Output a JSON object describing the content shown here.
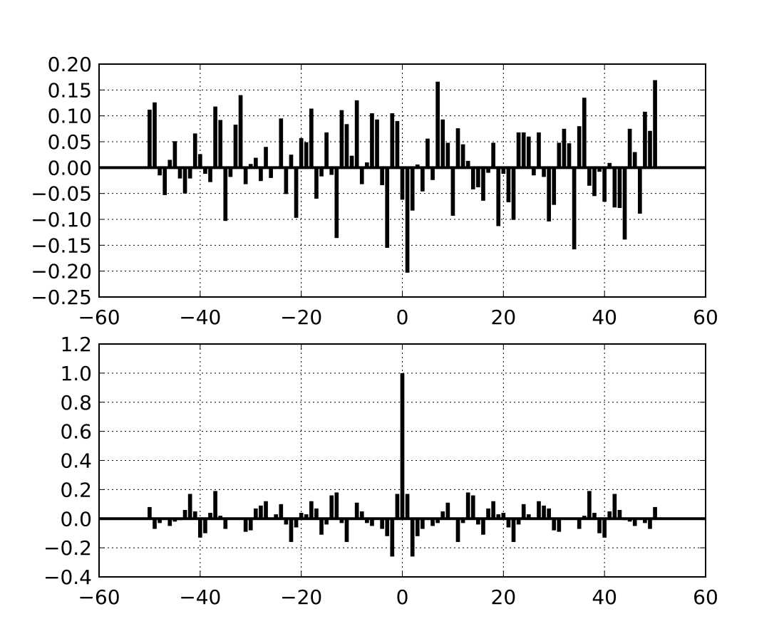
{
  "chart_data": [
    {
      "type": "bar",
      "title": "",
      "xlabel": "",
      "ylabel": "",
      "xlim": [
        -60,
        60
      ],
      "ylim": [
        -0.25,
        0.2
      ],
      "grid": true,
      "xticks": [
        -60,
        -40,
        -20,
        0,
        20,
        40,
        60
      ],
      "yticks": [
        -0.25,
        -0.2,
        -0.15,
        -0.1,
        -0.05,
        0.0,
        0.05,
        0.1,
        0.15,
        0.2
      ],
      "xtick_labels": [
        "−60",
        "−40",
        "−20",
        "0",
        "20",
        "40",
        "60"
      ],
      "ytick_labels": [
        "−0.25",
        "−0.20",
        "−0.15",
        "−0.10",
        "−0.05",
        "0.00",
        "0.05",
        "0.10",
        "0.15",
        "0.20"
      ],
      "zero_line": true,
      "bar_color": "#000000",
      "x": [
        -50,
        -49,
        -48,
        -47,
        -46,
        -45,
        -44,
        -43,
        -42,
        -41,
        -40,
        -39,
        -38,
        -37,
        -36,
        -35,
        -34,
        -33,
        -32,
        -31,
        -30,
        -29,
        -28,
        -27,
        -26,
        -25,
        -24,
        -23,
        -22,
        -21,
        -20,
        -19,
        -18,
        -17,
        -16,
        -15,
        -14,
        -13,
        -12,
        -11,
        -10,
        -9,
        -8,
        -7,
        -6,
        -5,
        -4,
        -3,
        -2,
        -1,
        0,
        1,
        2,
        3,
        4,
        5,
        6,
        7,
        8,
        9,
        10,
        11,
        12,
        13,
        14,
        15,
        16,
        17,
        18,
        19,
        20,
        21,
        22,
        23,
        24,
        25,
        26,
        27,
        28,
        29,
        30,
        31,
        32,
        33,
        34,
        35,
        36,
        37,
        38,
        39,
        40,
        41,
        42,
        43,
        44,
        45,
        46,
        47,
        48,
        49,
        50
      ],
      "values": [
        0.112,
        0.126,
        -0.015,
        -0.053,
        0.015,
        0.051,
        -0.021,
        -0.05,
        -0.021,
        0.066,
        0.026,
        -0.012,
        -0.028,
        0.118,
        0.092,
        -0.103,
        -0.018,
        0.083,
        0.14,
        -0.032,
        0.007,
        0.019,
        -0.026,
        0.04,
        -0.02,
        0.0,
        0.095,
        -0.051,
        0.025,
        -0.097,
        0.057,
        0.049,
        0.114,
        -0.06,
        -0.017,
        0.068,
        -0.014,
        -0.136,
        0.111,
        0.084,
        0.023,
        0.13,
        -0.032,
        0.01,
        0.105,
        0.093,
        -0.034,
        -0.155,
        0.105,
        0.09,
        -0.062,
        -0.203,
        -0.083,
        0.006,
        -0.046,
        0.056,
        -0.024,
        0.166,
        0.093,
        0.048,
        -0.093,
        0.076,
        0.045,
        0.013,
        -0.042,
        -0.038,
        -0.064,
        -0.01,
        0.048,
        -0.113,
        -0.012,
        -0.067,
        -0.101,
        0.068,
        0.068,
        0.06,
        -0.015,
        0.068,
        -0.018,
        -0.104,
        -0.072,
        0.048,
        0.075,
        0.047,
        -0.158,
        0.08,
        0.135,
        -0.035,
        -0.055,
        -0.008,
        -0.066,
        0.009,
        -0.077,
        -0.078,
        -0.139,
        0.075,
        0.03,
        -0.089,
        0.108,
        0.071,
        0.169
      ]
    },
    {
      "type": "bar",
      "title": "",
      "xlabel": "",
      "ylabel": "",
      "xlim": [
        -60,
        60
      ],
      "ylim": [
        -0.4,
        1.2
      ],
      "grid": true,
      "xticks": [
        -60,
        -40,
        -20,
        0,
        20,
        40,
        60
      ],
      "yticks": [
        -0.4,
        -0.2,
        0.0,
        0.2,
        0.4,
        0.6,
        0.8,
        1.0,
        1.2
      ],
      "xtick_labels": [
        "−60",
        "−40",
        "−20",
        "0",
        "20",
        "40",
        "60"
      ],
      "ytick_labels": [
        "−0.4",
        "−0.2",
        "0.0",
        "0.2",
        "0.4",
        "0.6",
        "0.8",
        "1.0",
        "1.2"
      ],
      "zero_line": true,
      "bar_color": "#000000",
      "x": [
        -50,
        -49,
        -48,
        -47,
        -46,
        -45,
        -44,
        -43,
        -42,
        -41,
        -40,
        -39,
        -38,
        -37,
        -36,
        -35,
        -34,
        -33,
        -32,
        -31,
        -30,
        -29,
        -28,
        -27,
        -26,
        -25,
        -24,
        -23,
        -22,
        -21,
        -20,
        -19,
        -18,
        -17,
        -16,
        -15,
        -14,
        -13,
        -12,
        -11,
        -10,
        -9,
        -8,
        -7,
        -6,
        -5,
        -4,
        -3,
        -2,
        -1,
        0,
        1,
        2,
        3,
        4,
        5,
        6,
        7,
        8,
        9,
        10,
        11,
        12,
        13,
        14,
        15,
        16,
        17,
        18,
        19,
        20,
        21,
        22,
        23,
        24,
        25,
        26,
        27,
        28,
        29,
        30,
        31,
        32,
        33,
        34,
        35,
        36,
        37,
        38,
        39,
        40,
        41,
        42,
        43,
        44,
        45,
        46,
        47,
        48,
        49,
        50
      ],
      "values": [
        0.08,
        -0.07,
        -0.03,
        0.0,
        -0.05,
        -0.02,
        -0.01,
        0.06,
        0.17,
        0.05,
        -0.13,
        -0.1,
        0.04,
        0.19,
        0.02,
        -0.07,
        0.0,
        0.0,
        0.0,
        -0.09,
        -0.08,
        0.07,
        0.09,
        0.12,
        0.0,
        0.03,
        0.1,
        -0.04,
        -0.16,
        -0.06,
        0.04,
        0.03,
        0.12,
        0.07,
        -0.11,
        -0.04,
        0.16,
        0.18,
        -0.03,
        -0.16,
        0.0,
        0.11,
        0.05,
        -0.03,
        -0.05,
        0.0,
        -0.07,
        -0.12,
        -0.26,
        0.17,
        1.0,
        0.17,
        -0.26,
        -0.12,
        -0.07,
        0.0,
        -0.05,
        -0.03,
        0.05,
        0.11,
        0.0,
        -0.16,
        -0.03,
        0.18,
        0.16,
        -0.04,
        -0.11,
        0.07,
        0.12,
        0.03,
        0.04,
        -0.06,
        -0.16,
        -0.04,
        0.1,
        0.03,
        0.0,
        0.12,
        0.09,
        0.07,
        -0.08,
        -0.09,
        0.0,
        0.0,
        0.0,
        -0.07,
        0.02,
        0.19,
        0.04,
        -0.1,
        -0.13,
        0.05,
        0.17,
        0.06,
        -0.01,
        -0.02,
        -0.05,
        0.0,
        -0.03,
        -0.07,
        0.08
      ]
    }
  ]
}
